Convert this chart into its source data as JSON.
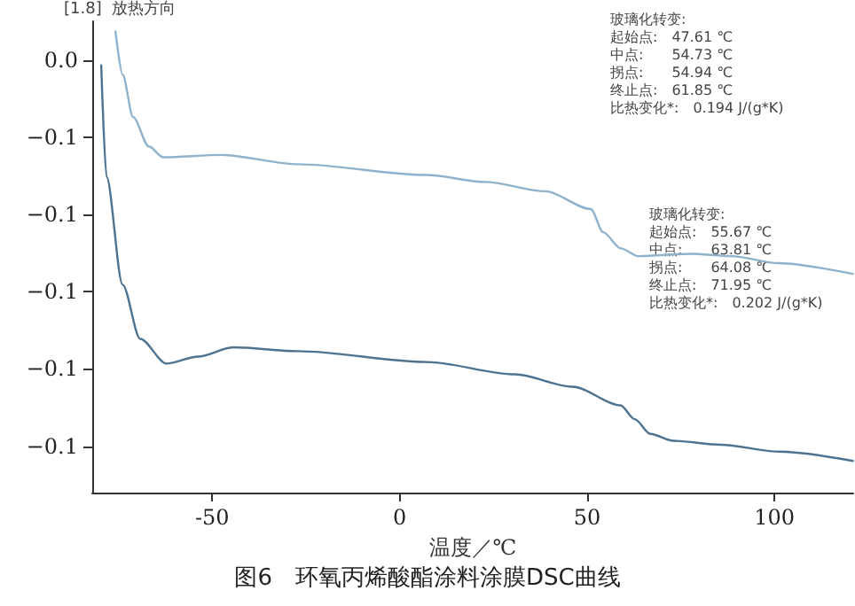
{
  "chart_data": {
    "type": "line",
    "title": "图6　环氧丙烯酸酯涂料涂膜DSC曲线",
    "xlabel": "温度／℃",
    "ylabel": "[1.8]  放热方向",
    "xlim": [
      -82,
      121
    ],
    "xticks": [
      -50,
      0,
      50,
      100
    ],
    "ylim": [
      -0.152,
      -0.03
    ],
    "yticks": [
      {
        "value": -0.04,
        "label": "0.0"
      },
      {
        "value": -0.06,
        "label": "−0.1"
      },
      {
        "value": -0.08,
        "label": "−0.1"
      },
      {
        "value": -0.1,
        "label": "−0.1"
      },
      {
        "value": -0.12,
        "label": "−0.1"
      },
      {
        "value": -0.14,
        "label": "−0.1"
      }
    ],
    "marker": "none",
    "line_style": "solid",
    "series": [
      {
        "color": "#8fb3cc",
        "x": [
          -75.8,
          -73.9,
          -71.1,
          -66.9,
          -63.1,
          -47.7,
          -27.0,
          7.3,
          22.8,
          38.8,
          51.0,
          54.3,
          59.0,
          63.7,
          77.7,
          88.5,
          101.2,
          120.9
        ],
        "values": [
          -0.0326,
          -0.0438,
          -0.0548,
          -0.0624,
          -0.0652,
          -0.0646,
          -0.067,
          -0.0698,
          -0.0716,
          -0.074,
          -0.0786,
          -0.0846,
          -0.0888,
          -0.0908,
          -0.0902,
          -0.0908,
          -0.0926,
          -0.0954
        ]
      },
      {
        "color": "#4d7391",
        "x": [
          -79.6,
          -78.2,
          -73.9,
          -69.2,
          -62.2,
          -53.8,
          -44.4,
          -27.0,
          7.3,
          30.8,
          46.2,
          58.9,
          62.7,
          66.9,
          73.0,
          85.7,
          101.2,
          120.9
        ],
        "values": [
          -0.0414,
          -0.0702,
          -0.0982,
          -0.1122,
          -0.1186,
          -0.1168,
          -0.1144,
          -0.1154,
          -0.1182,
          -0.1214,
          -0.1246,
          -0.1294,
          -0.133,
          -0.1368,
          -0.1386,
          -0.1396,
          -0.1414,
          -0.1438
        ]
      }
    ],
    "annotations": [
      "玻璃化转变:\n起始点:　47.61 ℃\n中点:　　54.73 ℃\n拐点:　　54.94 ℃\n终止点:　61.85 ℃\n比热变化*:　0.194 J/(g*K)",
      "玻璃化转变:\n起始点:　55.67 ℃\n中点:　　63.81 ℃\n拐点:　　64.08 ℃\n终止点:　71.95 ℃\n比热变化*:　0.202 J/(g*K)"
    ]
  }
}
